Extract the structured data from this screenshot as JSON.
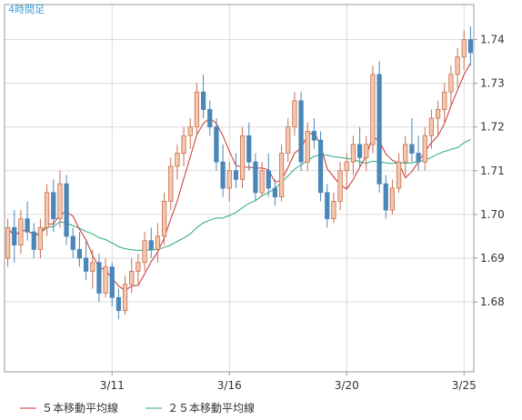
{
  "chart_data": {
    "type": "candlestick",
    "title": "4時間足",
    "ylim": [
      1.664,
      1.748
    ],
    "yticks": [
      1.68,
      1.69,
      1.7,
      1.71,
      1.72,
      1.73,
      1.74
    ],
    "ytick_labels": [
      "1.68",
      "1.69",
      "1.70",
      "1.71",
      "1.72",
      "1.73",
      "1.74"
    ],
    "grid": true,
    "legend_position": "bottom-left",
    "colors": {
      "up_candle": "#f3c8ae",
      "up_candle_border": "#c86e50",
      "down_candle": "#4a86b8",
      "ma5": "#c8322c",
      "ma25": "#2aa879",
      "grid": "#dcdcdc",
      "axis": "#999999",
      "title": "#3aa0d8"
    },
    "x_ticks": [
      {
        "label": "3/11",
        "index": 16
      },
      {
        "label": "3/16",
        "index": 34
      },
      {
        "label": "3/20",
        "index": 52
      },
      {
        "label": "3/25",
        "index": 70
      }
    ],
    "candles": [
      [
        1.69,
        1.699,
        1.688,
        1.697
      ],
      [
        1.697,
        1.701,
        1.689,
        1.693
      ],
      [
        1.693,
        1.701,
        1.691,
        1.699
      ],
      [
        1.699,
        1.703,
        1.694,
        1.696
      ],
      [
        1.696,
        1.698,
        1.69,
        1.692
      ],
      [
        1.692,
        1.699,
        1.69,
        1.697
      ],
      [
        1.697,
        1.707,
        1.695,
        1.705
      ],
      [
        1.705,
        1.708,
        1.696,
        1.699
      ],
      [
        1.699,
        1.71,
        1.697,
        1.707
      ],
      [
        1.707,
        1.709,
        1.693,
        1.695
      ],
      [
        1.695,
        1.697,
        1.69,
        1.692
      ],
      [
        1.692,
        1.696,
        1.688,
        1.69
      ],
      [
        1.69,
        1.694,
        1.685,
        1.687
      ],
      [
        1.687,
        1.692,
        1.683,
        1.689
      ],
      [
        1.689,
        1.691,
        1.68,
        1.682
      ],
      [
        1.682,
        1.69,
        1.681,
        1.688
      ],
      [
        1.688,
        1.689,
        1.679,
        1.681
      ],
      [
        1.681,
        1.683,
        1.676,
        1.678
      ],
      [
        1.678,
        1.686,
        1.677,
        1.684
      ],
      [
        1.684,
        1.69,
        1.682,
        1.687
      ],
      [
        1.687,
        1.691,
        1.684,
        1.689
      ],
      [
        1.689,
        1.696,
        1.687,
        1.694
      ],
      [
        1.694,
        1.697,
        1.69,
        1.692
      ],
      [
        1.692,
        1.698,
        1.689,
        1.695
      ],
      [
        1.695,
        1.705,
        1.693,
        1.703
      ],
      [
        1.703,
        1.713,
        1.701,
        1.711
      ],
      [
        1.711,
        1.716,
        1.708,
        1.714
      ],
      [
        1.714,
        1.72,
        1.711,
        1.718
      ],
      [
        1.718,
        1.722,
        1.715,
        1.72
      ],
      [
        1.72,
        1.73,
        1.718,
        1.728
      ],
      [
        1.728,
        1.732,
        1.722,
        1.724
      ],
      [
        1.724,
        1.726,
        1.718,
        1.72
      ],
      [
        1.72,
        1.722,
        1.71,
        1.712
      ],
      [
        1.712,
        1.716,
        1.704,
        1.706
      ],
      [
        1.706,
        1.712,
        1.703,
        1.71
      ],
      [
        1.71,
        1.714,
        1.706,
        1.708
      ],
      [
        1.708,
        1.72,
        1.706,
        1.718
      ],
      [
        1.718,
        1.721,
        1.71,
        1.712
      ],
      [
        1.712,
        1.714,
        1.703,
        1.705
      ],
      [
        1.705,
        1.712,
        1.704,
        1.71
      ],
      [
        1.71,
        1.714,
        1.704,
        1.706
      ],
      [
        1.706,
        1.708,
        1.702,
        1.704
      ],
      [
        1.704,
        1.716,
        1.703,
        1.714
      ],
      [
        1.714,
        1.722,
        1.712,
        1.72
      ],
      [
        1.72,
        1.728,
        1.718,
        1.726
      ],
      [
        1.726,
        1.728,
        1.71,
        1.712
      ],
      [
        1.712,
        1.721,
        1.71,
        1.719
      ],
      [
        1.719,
        1.722,
        1.715,
        1.717
      ],
      [
        1.717,
        1.719,
        1.703,
        1.705
      ],
      [
        1.705,
        1.707,
        1.697,
        1.699
      ],
      [
        1.699,
        1.705,
        1.698,
        1.703
      ],
      [
        1.703,
        1.712,
        1.701,
        1.71
      ],
      [
        1.71,
        1.714,
        1.706,
        1.712
      ],
      [
        1.712,
        1.718,
        1.709,
        1.716
      ],
      [
        1.716,
        1.72,
        1.711,
        1.713
      ],
      [
        1.713,
        1.718,
        1.71,
        1.716
      ],
      [
        1.716,
        1.734,
        1.714,
        1.732
      ],
      [
        1.732,
        1.735,
        1.705,
        1.707
      ],
      [
        1.707,
        1.709,
        1.699,
        1.701
      ],
      [
        1.701,
        1.708,
        1.7,
        1.706
      ],
      [
        1.706,
        1.714,
        1.705,
        1.712
      ],
      [
        1.712,
        1.718,
        1.709,
        1.716
      ],
      [
        1.716,
        1.722,
        1.712,
        1.714
      ],
      [
        1.714,
        1.718,
        1.71,
        1.712
      ],
      [
        1.712,
        1.72,
        1.71,
        1.718
      ],
      [
        1.718,
        1.724,
        1.715,
        1.722
      ],
      [
        1.722,
        1.726,
        1.718,
        1.724
      ],
      [
        1.724,
        1.73,
        1.721,
        1.728
      ],
      [
        1.728,
        1.734,
        1.725,
        1.732
      ],
      [
        1.732,
        1.738,
        1.729,
        1.736
      ],
      [
        1.736,
        1.742,
        1.733,
        1.74
      ],
      [
        1.74,
        1.743,
        1.734,
        1.737
      ]
    ]
  },
  "legend": [
    {
      "label": "５本移動平均線",
      "color": "#c8322c"
    },
    {
      "label": "２５本移動平均線",
      "color": "#2aa879"
    }
  ]
}
